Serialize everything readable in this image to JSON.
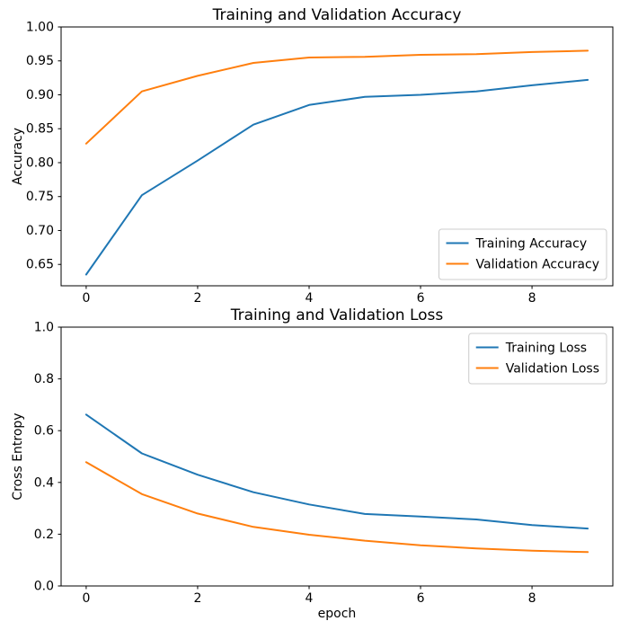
{
  "figure": {
    "background": "#ffffff"
  },
  "chart_data": [
    {
      "type": "line",
      "title": "Training and Validation Accuracy",
      "xlabel": "",
      "ylabel": "Accuracy",
      "grid": false,
      "legend_position": "lower right",
      "x": [
        0,
        1,
        2,
        3,
        4,
        5,
        6,
        7,
        8,
        9
      ],
      "xlim": [
        -0.45,
        9.45
      ],
      "ylim": [
        0.6185,
        1.0
      ],
      "xticks": [
        0,
        2,
        4,
        6,
        8
      ],
      "xtick_labels": [
        "0",
        "2",
        "4",
        "6",
        "8"
      ],
      "yticks": [
        0.65,
        0.7,
        0.75,
        0.8,
        0.85,
        0.9,
        0.95,
        1.0
      ],
      "ytick_labels": [
        "0.65",
        "0.70",
        "0.75",
        "0.80",
        "0.85",
        "0.90",
        "0.95",
        "1.00"
      ],
      "series": [
        {
          "name": "Training Accuracy",
          "color": "#1f77b4",
          "values": [
            0.635,
            0.752,
            0.803,
            0.856,
            0.885,
            0.897,
            0.9,
            0.905,
            0.914,
            0.922
          ]
        },
        {
          "name": "Validation Accuracy",
          "color": "#ff7f0e",
          "values": [
            0.828,
            0.905,
            0.928,
            0.947,
            0.955,
            0.956,
            0.959,
            0.96,
            0.963,
            0.965
          ]
        }
      ]
    },
    {
      "type": "line",
      "title": "Training and Validation Loss",
      "xlabel": "epoch",
      "ylabel": "Cross Entropy",
      "grid": false,
      "legend_position": "upper right",
      "x": [
        0,
        1,
        2,
        3,
        4,
        5,
        6,
        7,
        8,
        9
      ],
      "xlim": [
        -0.45,
        9.45
      ],
      "ylim": [
        0.0,
        1.0
      ],
      "xticks": [
        0,
        2,
        4,
        6,
        8
      ],
      "xtick_labels": [
        "0",
        "2",
        "4",
        "6",
        "8"
      ],
      "yticks": [
        0.0,
        0.2,
        0.4,
        0.6,
        0.8,
        1.0
      ],
      "ytick_labels": [
        "0.0",
        "0.2",
        "0.4",
        "0.6",
        "0.8",
        "1.0"
      ],
      "series": [
        {
          "name": "Training Loss",
          "color": "#1f77b4",
          "values": [
            0.662,
            0.512,
            0.43,
            0.362,
            0.315,
            0.278,
            0.268,
            0.257,
            0.235,
            0.222
          ]
        },
        {
          "name": "Validation Loss",
          "color": "#ff7f0e",
          "values": [
            0.478,
            0.355,
            0.28,
            0.228,
            0.198,
            0.175,
            0.157,
            0.145,
            0.136,
            0.131
          ]
        }
      ]
    }
  ]
}
